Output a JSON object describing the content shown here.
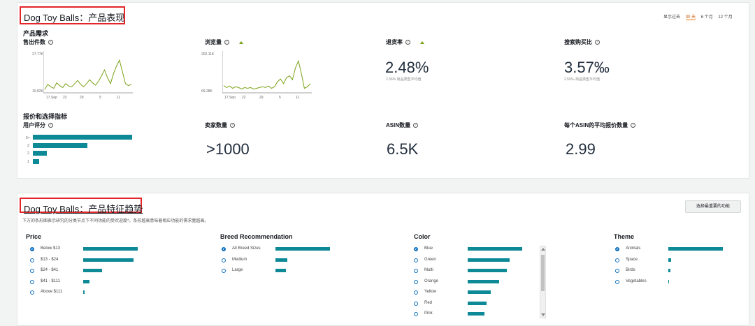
{
  "perf": {
    "title": "Dog Toy Balls：产品表现",
    "range": {
      "label": "显示过去",
      "options": [
        "30 天",
        "6 个月",
        "12 个月"
      ],
      "selected": "30 天"
    },
    "demand": {
      "section_label": "产品需求",
      "units_sold": {
        "label": "售出件数",
        "ymax": "27.77K",
        "ymin": "10.82K",
        "xticks": [
          "17.Sep",
          "22",
          "29",
          "5",
          "11"
        ]
      },
      "page_views": {
        "label": "浏览量",
        "ymax": "202.11K",
        "ymin": "69.28K",
        "xticks": [
          "17.Sep",
          "22",
          "29",
          "5",
          "11"
        ]
      },
      "return_rate": {
        "label": "退货率",
        "value": "2.48%",
        "sub": "2.36% 商品类型平均值"
      },
      "search_ratio": {
        "label": "搜索购买比",
        "value": "3.57‰",
        "sub": "2.50‰ 商品类型平均值"
      }
    },
    "pricing": {
      "section_label": "报价和选择指标",
      "rating": {
        "label": "用户评分",
        "levels": [
          "5+",
          "2",
          "2",
          "1"
        ],
        "values": [
          100,
          55,
          14,
          6
        ]
      },
      "sellers": {
        "label": "卖家数量",
        "value": ">1000"
      },
      "asins": {
        "label": "ASIN数量",
        "value": "6.5K"
      },
      "avg_offers": {
        "label": "每个ASIN的平均报价数量",
        "value": "2.99"
      }
    }
  },
  "trends": {
    "title": "Dog Toy Balls：产品特征趋势",
    "description": "下方的条形图表示研究的分类节点下不同功能的受欢迎度*。条形越高意味着相应功能的需求量越高。",
    "button": "选择最重要的功能",
    "price": {
      "header": "Price",
      "items": [
        {
          "label": "Below $13",
          "value": 78,
          "selected": true
        },
        {
          "label": "$13 - $24",
          "value": 72,
          "selected": false
        },
        {
          "label": "$24 - $41",
          "value": 27,
          "selected": false
        },
        {
          "label": "$41 - $111",
          "value": 9,
          "selected": false
        },
        {
          "label": "Above $111",
          "value": 2,
          "selected": false
        }
      ]
    },
    "breed": {
      "header": "Breed Recommendation",
      "items": [
        {
          "label": "All Breed Sizes",
          "value": 78,
          "selected": true
        },
        {
          "label": "Medium",
          "value": 17,
          "selected": false
        },
        {
          "label": "Large",
          "value": 15,
          "selected": false
        }
      ]
    },
    "color": {
      "header": "Color",
      "items": [
        {
          "label": "Blue",
          "value": 78,
          "selected": true
        },
        {
          "label": "Green",
          "value": 60,
          "selected": false
        },
        {
          "label": "Multi",
          "value": 56,
          "selected": false
        },
        {
          "label": "Orange",
          "value": 45,
          "selected": false
        },
        {
          "label": "Yellow",
          "value": 33,
          "selected": false
        },
        {
          "label": "Red",
          "value": 27,
          "selected": false
        },
        {
          "label": "Pink",
          "value": 24,
          "selected": false
        }
      ]
    },
    "theme": {
      "header": "Theme",
      "items": [
        {
          "label": "Animals",
          "value": 78,
          "selected": true
        },
        {
          "label": "Space",
          "value": 4,
          "selected": false
        },
        {
          "label": "Birds",
          "value": 3,
          "selected": false
        },
        {
          "label": "Vegetables",
          "value": 1,
          "selected": false
        }
      ]
    }
  },
  "colors": {
    "accent": "#0e8a97",
    "line": "#7aa116",
    "highlight": "#e3262a"
  }
}
